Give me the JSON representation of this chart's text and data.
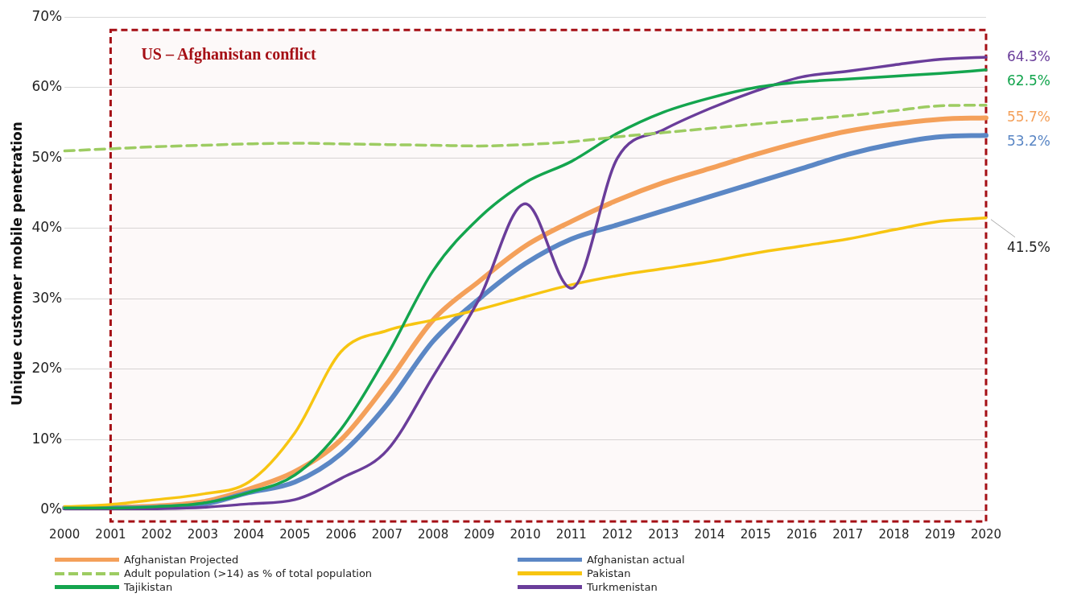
{
  "chart_data": {
    "type": "line",
    "ylabel": "Unique customer mobile penetration",
    "categories": [
      "2000",
      "2001",
      "2002",
      "2003",
      "2004",
      "2005",
      "2006",
      "2007",
      "2008",
      "2009",
      "2010",
      "2011",
      "2012",
      "2013",
      "2014",
      "2015",
      "2016",
      "2017",
      "2018",
      "2019",
      "2020"
    ],
    "series": [
      {
        "name": "Afghanistan Projected",
        "color": "#f4a05a",
        "values": [
          0.3,
          0.4,
          0.6,
          1.2,
          3,
          5.5,
          10,
          18,
          27,
          32.5,
          37.5,
          41,
          44,
          46.5,
          48.5,
          50.5,
          52.3,
          53.8,
          54.8,
          55.5,
          55.7
        ],
        "value_labels": [
          null,
          null,
          null,
          null,
          null,
          null,
          null,
          null,
          null,
          null,
          null,
          null,
          null,
          null,
          null,
          null,
          null,
          null,
          null,
          null,
          "55.7%"
        ]
      },
      {
        "name": "Afghanistan actual",
        "color": "#5b87c5",
        "values": [
          0.3,
          0.3,
          0.4,
          0.8,
          2.5,
          4,
          8,
          15,
          24,
          30,
          35,
          38.5,
          40.5,
          42.5,
          44.5,
          46.5,
          48.5,
          50.5,
          52,
          53,
          53.2
        ],
        "value_labels": [
          null,
          null,
          null,
          null,
          null,
          null,
          null,
          null,
          null,
          null,
          null,
          null,
          null,
          null,
          null,
          null,
          null,
          null,
          null,
          null,
          "53.2%"
        ]
      },
      {
        "name": "Adult population (>14) as % of total population",
        "color": "#9dcc62",
        "line_style": "dashed",
        "values": [
          51,
          51.3,
          51.6,
          51.8,
          52,
          52.1,
          52,
          51.9,
          51.8,
          51.7,
          51.9,
          52.3,
          53,
          53.6,
          54.2,
          54.8,
          55.4,
          56,
          56.7,
          57.4,
          57.5
        ]
      },
      {
        "name": "Pakistan",
        "color": "#f7c511",
        "values": [
          0.5,
          0.8,
          1.5,
          2.3,
          4,
          11,
          22.5,
          25.5,
          27,
          28.5,
          30.3,
          32,
          33.3,
          34.3,
          35.3,
          36.5,
          37.5,
          38.5,
          39.8,
          41,
          41.5
        ],
        "value_labels": [
          null,
          null,
          null,
          null,
          null,
          null,
          null,
          null,
          null,
          null,
          null,
          null,
          null,
          null,
          null,
          null,
          null,
          null,
          null,
          null,
          "41.5%"
        ]
      },
      {
        "name": "Tajikistan",
        "color": "#14a54e",
        "values": [
          0.3,
          0.3,
          0.5,
          1,
          2.5,
          5,
          11.5,
          22,
          34,
          41.5,
          46.5,
          49.5,
          53.5,
          56.5,
          58.5,
          60,
          60.8,
          61.2,
          61.6,
          62,
          62.5
        ],
        "value_labels": [
          null,
          null,
          null,
          null,
          null,
          null,
          null,
          null,
          null,
          null,
          null,
          null,
          null,
          null,
          null,
          null,
          null,
          null,
          null,
          null,
          "62.5%"
        ]
      },
      {
        "name": "Turkmenistan",
        "color": "#6a3d9a",
        "values": [
          0.1,
          0.1,
          0.2,
          0.4,
          0.9,
          1.5,
          4.5,
          8.5,
          19,
          30,
          43.5,
          31.5,
          50,
          54,
          57,
          59.5,
          61.5,
          62.3,
          63.2,
          64,
          64.3
        ],
        "value_labels": [
          null,
          null,
          null,
          null,
          null,
          null,
          null,
          null,
          null,
          null,
          null,
          null,
          null,
          null,
          null,
          null,
          null,
          null,
          null,
          null,
          "64.3%"
        ]
      }
    ],
    "ylim": [
      0,
      70
    ],
    "yticks": [
      {
        "value": 0,
        "label": "0%"
      },
      {
        "value": 10,
        "label": "10%"
      },
      {
        "value": 20,
        "label": "20%"
      },
      {
        "value": 30,
        "label": "30%"
      },
      {
        "value": 40,
        "label": "40%"
      },
      {
        "value": 50,
        "label": "50%"
      },
      {
        "value": 60,
        "label": "60%"
      },
      {
        "value": 70,
        "label": "70%"
      }
    ],
    "bands": [
      {
        "axis": "x",
        "from": "2001",
        "to": "2020",
        "label": "US – Afghanistan conflict",
        "color": "#a50f15"
      }
    ],
    "grid": "y",
    "legend": "bottom",
    "line_style": "solid",
    "marker": "none"
  }
}
